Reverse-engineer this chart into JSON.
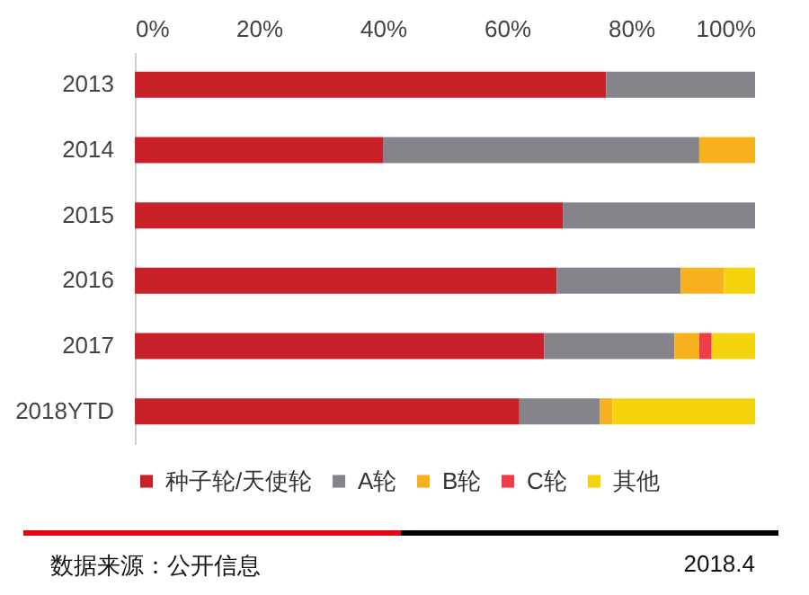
{
  "chart_data": {
    "type": "bar",
    "orientation": "horizontal",
    "stacked": true,
    "categories": [
      "2013",
      "2014",
      "2015",
      "2016",
      "2017",
      "2018YTD"
    ],
    "series": [
      {
        "name": "种子轮/天使轮",
        "color": "#c9212a",
        "values": [
          76,
          40,
          69,
          68,
          66,
          62
        ]
      },
      {
        "name": "A轮",
        "color": "#86848a",
        "values": [
          24,
          51,
          31,
          20,
          21,
          13
        ]
      },
      {
        "name": "B轮",
        "color": "#f7b11e",
        "values": [
          null,
          9,
          null,
          7,
          4,
          2
        ]
      },
      {
        "name": "C轮",
        "color": "#ee3d48",
        "values": [
          null,
          null,
          null,
          null,
          2,
          null
        ]
      },
      {
        "name": "其他",
        "color": "#f5d30d",
        "values": [
          null,
          null,
          null,
          5,
          7,
          23
        ]
      }
    ],
    "xlim": [
      0,
      100
    ],
    "xticks": [
      {
        "value": 0,
        "label": "0%"
      },
      {
        "value": 20,
        "label": "20%"
      },
      {
        "value": 40,
        "label": "40%"
      },
      {
        "value": 60,
        "label": "60%"
      },
      {
        "value": 80,
        "label": "80%"
      },
      {
        "value": 100,
        "label": "100%"
      }
    ],
    "grid": false,
    "legend": "bottom left",
    "annotations": [
      "数据来源：公开信息",
      "2018.4"
    ]
  }
}
